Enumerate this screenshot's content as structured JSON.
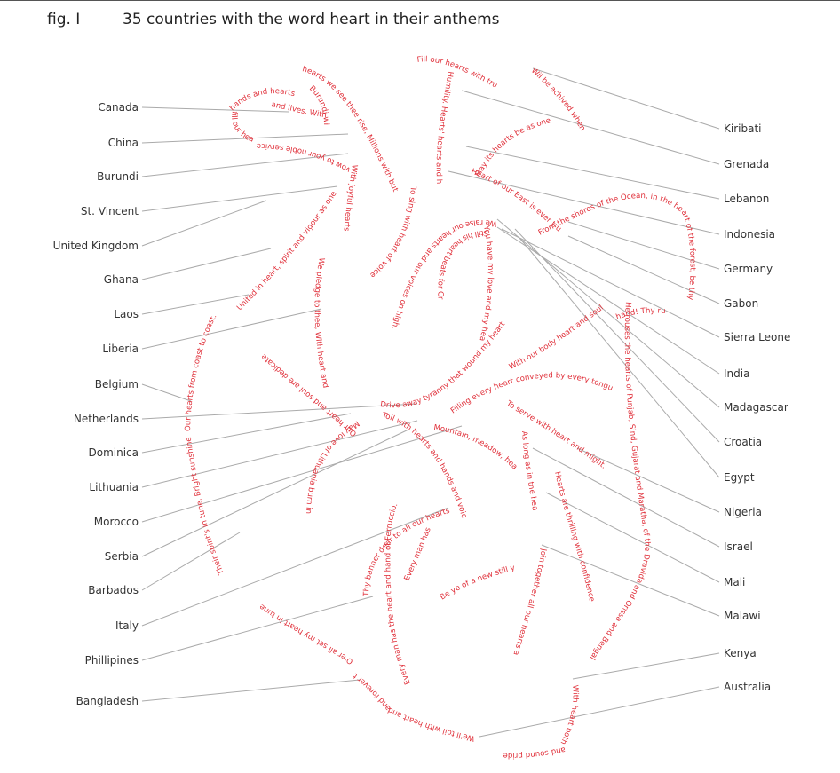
{
  "figure": {
    "label": "fig. I",
    "title": "35 countries with the word heart in their anthems"
  },
  "colors": {
    "lyric": "#e0303a",
    "leader": "#aaaaaa",
    "label": "#333333"
  },
  "left_countries": [
    "Canada",
    "China",
    "Burundi",
    "St. Vincent",
    "United Kingdom",
    "Ghana",
    "Laos",
    "Liberia",
    "Belgium",
    "Netherlands",
    "Dominica",
    "Lithuania",
    "Morocco",
    "Serbia",
    "Barbados",
    "Italy",
    "Phillipines",
    "Bangladesh"
  ],
  "right_countries": [
    "Kiribati",
    "Grenada",
    "Lebanon",
    "Indonesia",
    "Germany",
    "Gabon",
    "Sierra Leone",
    "India",
    "Madagascar",
    "Croatia",
    "Egypt",
    "Nigeria",
    "Israel",
    "Mali",
    "Malawi",
    "Kenya",
    "Australia"
  ],
  "lyrics": [
    "Our heart and soul are dedicate",
    "Our hearts from coast to coast.",
    "Their spirit's in tune. Bright sunshine",
    "O'er all set my heart in tune",
    "Every man has the heart and hand of Ferruccio.",
    "Thy banner dear to all our hearts.",
    "Every man has",
    "We'll toil with heart and hand",
    "and forever tell our sky its your",
    "With heart both strong and true",
    "and sound pride",
    "Hearts are thrilling with confidence.",
    "Join together all our hearts as one.",
    "Be ye of a new still yearns.",
    "As long as in the heart within, the soul",
    "To serve with heart and might.",
    "Mountain, meadow, heart and spire!",
    "Toil with hearts and hands and voices.",
    "May love of Lithuania burn in our hearts.",
    "Drive away tyranny that wound my heart.",
    "Filling every heart conveyed by every tongue",
    "We raise our hearts and our voices on high.",
    "Still his heart beats for Croatia!",
    "You have my love and my heart.",
    "With our body heart and soul",
    "He rouses the hearts of Punjab, Sind, Gujarat and Maratha, of the Dravida and Orissa and Bengal.",
    "hand! Thy ru",
    "From the shores of the Ocean, in the heart of the forest, be thy shy and a",
    "Heart of our East is ever true",
    "May its hearts be as one.",
    "Wil be achived when all",
    "Humility. Hearts' hearts and hands bear",
    "Fill our hearts with true humility.",
    "To sing with heart of voice.",
    "We pledge to thee, With heart and hand.",
    "With joyful hearts",
    "vow to your noble service",
    "United in heart, spirit and vigour as one",
    "hearts we see thee rise, Millions with but one",
    "and lives. With",
    "Burundi with",
    "hands and hearts",
    "fill our hearts our"
  ]
}
